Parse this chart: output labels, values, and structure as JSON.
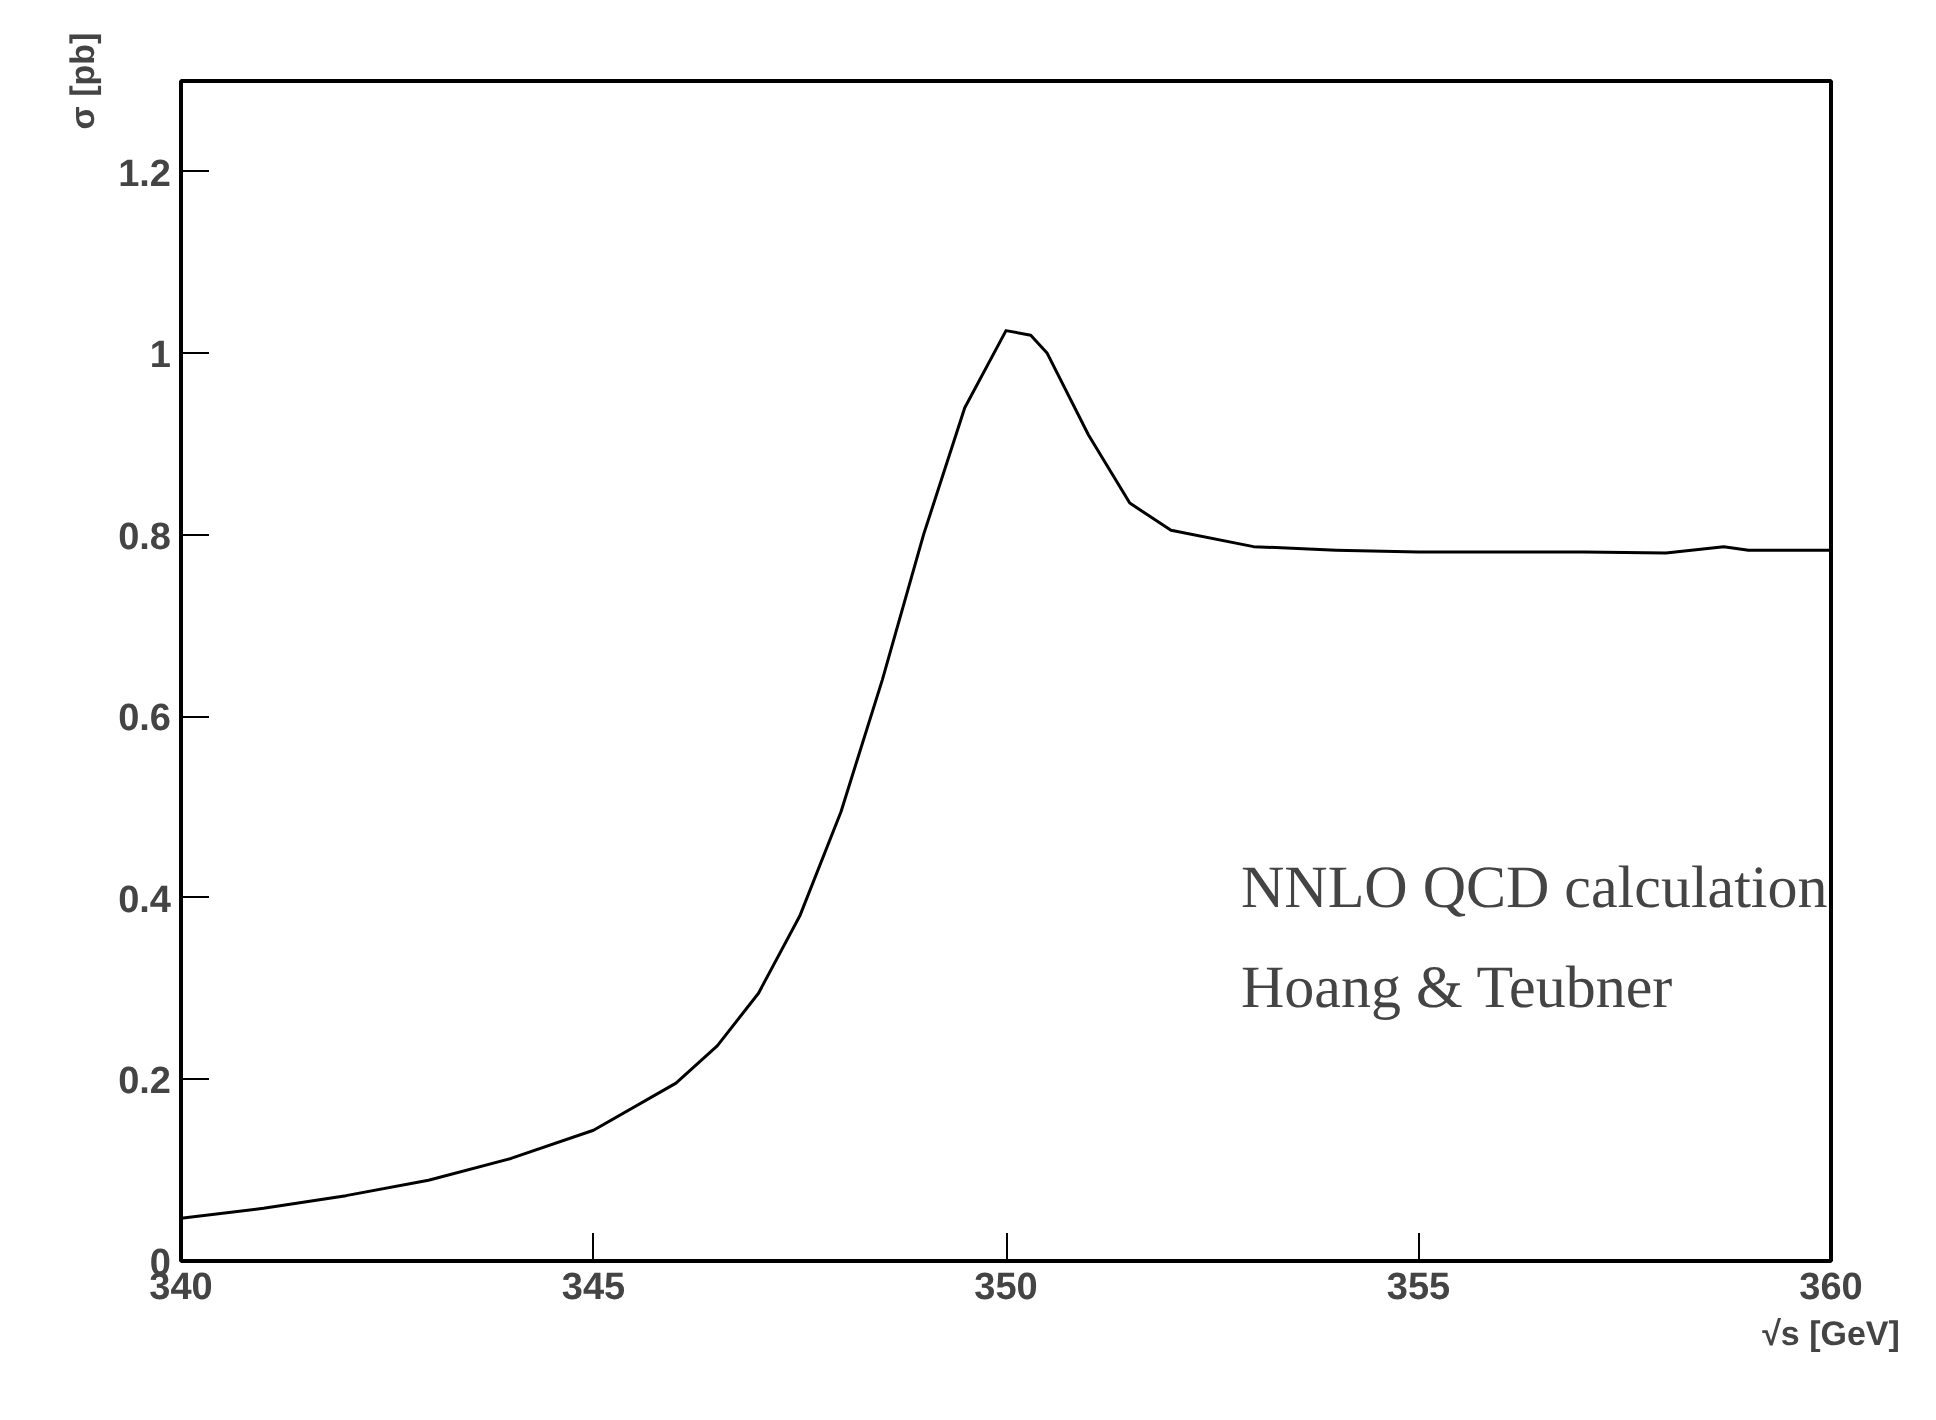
{
  "chart_data": {
    "type": "line",
    "xlabel": "√s [GeV]",
    "ylabel": "σ [pb]",
    "x": [
      340,
      341,
      342,
      343,
      344,
      345,
      346,
      346.5,
      347,
      347.5,
      348,
      348.5,
      349,
      349.5,
      350,
      350.3,
      350.5,
      351,
      351.5,
      352,
      353,
      354,
      355,
      356,
      357,
      358,
      358.7,
      359,
      360
    ],
    "series": [
      {
        "color": "#000000",
        "values": [
          0.047,
          0.058,
          0.072,
          0.089,
          0.113,
          0.144,
          0.196,
          0.237,
          0.295,
          0.38,
          0.495,
          0.64,
          0.8,
          0.94,
          1.025,
          1.02,
          1.0,
          0.91,
          0.835,
          0.805,
          0.787,
          0.783,
          0.781,
          0.781,
          0.781,
          0.78,
          0.787,
          0.783,
          0.783
        ]
      }
    ],
    "xlim": [
      340,
      360
    ],
    "ylim": [
      0,
      1.3
    ],
    "xticks": [
      340,
      345,
      350,
      355,
      360
    ],
    "yticks": [
      0,
      0.2,
      0.4,
      0.6,
      0.8,
      1,
      1.2
    ],
    "annotations": [
      "NNLO QCD calculation",
      "Hoang & Teubner"
    ],
    "grid": false,
    "marker": "none",
    "line_style": "solid"
  }
}
